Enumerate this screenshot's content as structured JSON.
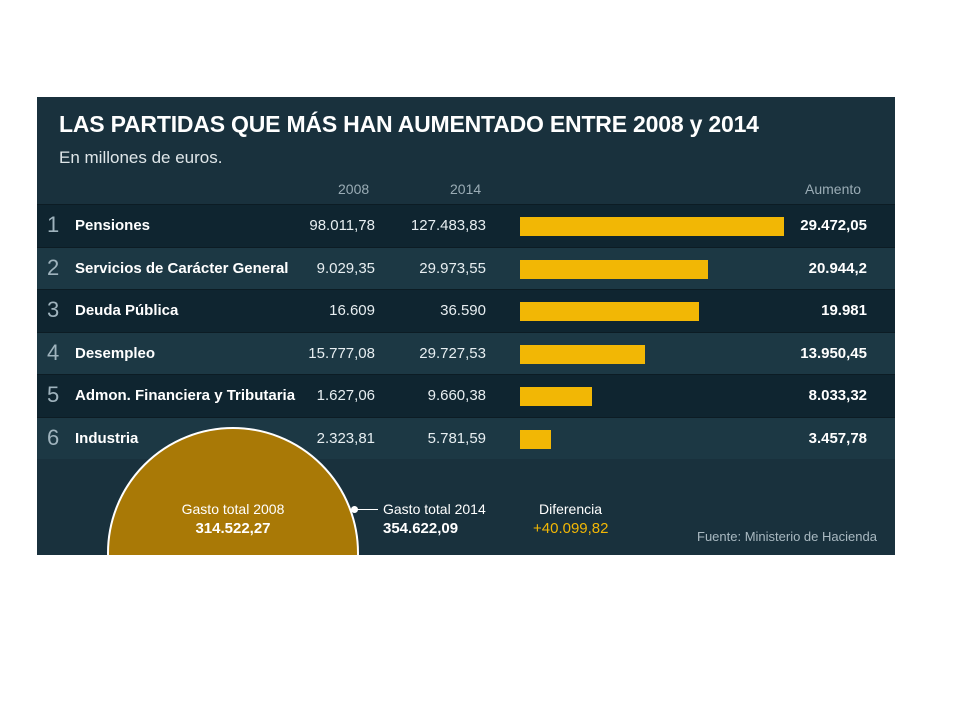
{
  "chart_data": {
    "type": "bar",
    "title": "LAS PARTIDAS QUE MÁS HAN AUMENTADO ENTRE 2008 y 2014",
    "subtitle": "En millones de euros.",
    "columns": {
      "y2008": "2008",
      "y2014": "2014",
      "increase": "Aumento"
    },
    "rows": [
      {
        "rank": "1",
        "label": "Pensiones",
        "v2008": "98.011,78",
        "v2014": "127.483,83",
        "increase_text": "29.472,05",
        "increase": 29472.05
      },
      {
        "rank": "2",
        "label": "Servicios de Carácter General",
        "v2008": "9.029,35",
        "v2014": "29.973,55",
        "increase_text": "20.944,2",
        "increase": 20944.2
      },
      {
        "rank": "3",
        "label": "Deuda Pública",
        "v2008": "16.609",
        "v2014": "36.590",
        "increase_text": "19.981",
        "increase": 19981
      },
      {
        "rank": "4",
        "label": "Desempleo",
        "v2008": "15.777,08",
        "v2014": "29.727,53",
        "increase_text": "13.950,45",
        "increase": 13950.45
      },
      {
        "rank": "5",
        "label": "Admon. Financiera y Tributaria",
        "v2008": "1.627,06",
        "v2014": "9.660,38",
        "increase_text": "8.033,32",
        "increase": 8033.32
      },
      {
        "rank": "6",
        "label": "Industria",
        "v2008": "2.323,81",
        "v2014": "5.781,59",
        "increase_text": "3.457,78",
        "increase": 3457.78
      }
    ],
    "totals": {
      "label_2008": "Gasto total 2008",
      "value_2008": "314.522,27",
      "label_2014": "Gasto total 2014",
      "value_2014": "354.622,09",
      "diff_label": "Diferencia",
      "diff_value": "+40.099,82"
    },
    "source": "Fuente: Ministerio de Hacienda",
    "colors": {
      "background": "#19313d",
      "bar": "#f2b705",
      "circle": "#a97906"
    }
  }
}
